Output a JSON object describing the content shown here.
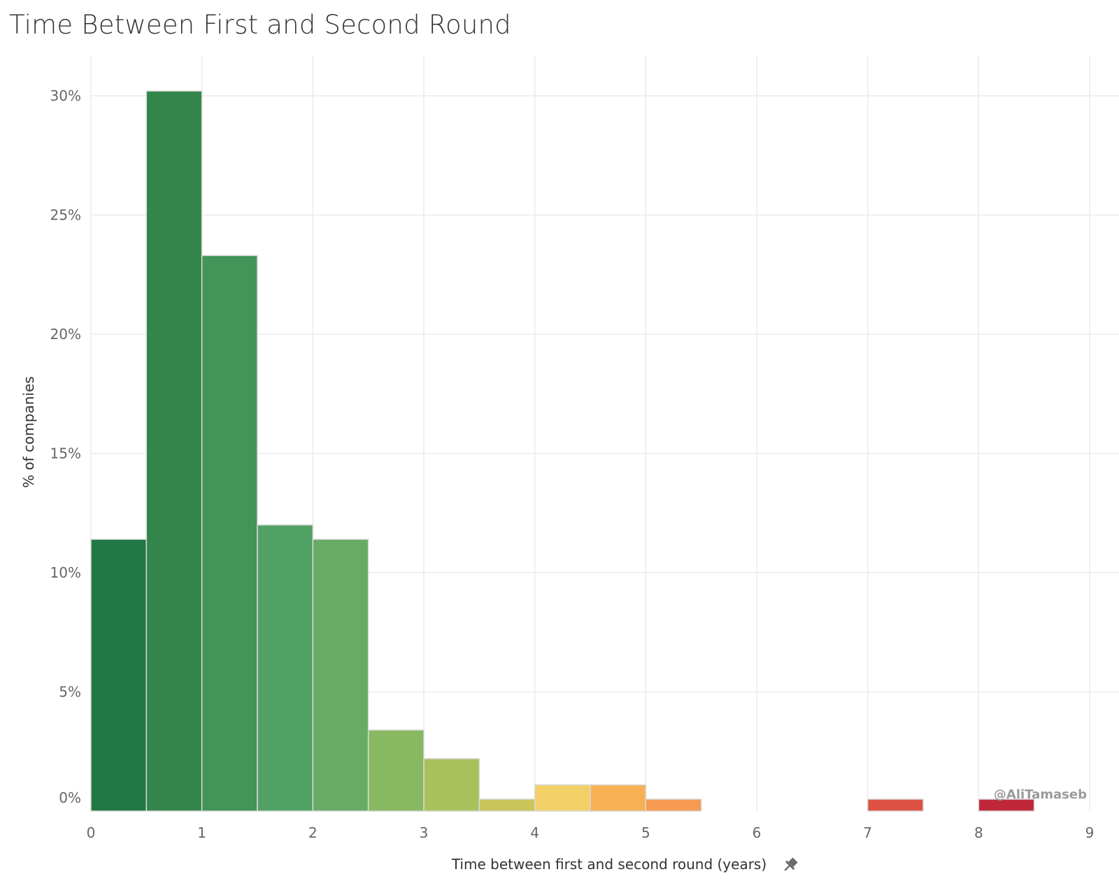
{
  "title": "Time Between First and Second Round",
  "watermark": "@AliTamaseb",
  "icons": {
    "pin": "pin-icon"
  },
  "chart_data": {
    "type": "bar",
    "title": "Time Between First and Second Round",
    "xlabel": "Time between first and second round (years)",
    "ylabel": "% of companies",
    "xlim": [
      0,
      9
    ],
    "ylim": [
      0,
      30
    ],
    "x_ticks": [
      "0",
      "1",
      "2",
      "3",
      "4",
      "5",
      "6",
      "7",
      "8",
      "9"
    ],
    "y_ticks": [
      "0%",
      "5%",
      "10%",
      "15%",
      "20%",
      "25%",
      "30%"
    ],
    "grid": true,
    "bin_width": 0.5,
    "bins": [
      {
        "start": 0.0,
        "end": 0.5,
        "value": 11.4,
        "color": "#227844"
      },
      {
        "start": 0.5,
        "end": 1.0,
        "value": 30.2,
        "color": "#33854b"
      },
      {
        "start": 1.0,
        "end": 1.5,
        "value": 23.3,
        "color": "#429458"
      },
      {
        "start": 1.5,
        "end": 2.0,
        "value": 12.0,
        "color": "#52a164"
      },
      {
        "start": 2.0,
        "end": 2.5,
        "value": 11.4,
        "color": "#68ab65"
      },
      {
        "start": 2.5,
        "end": 3.0,
        "value": 3.4,
        "color": "#88b862"
      },
      {
        "start": 3.0,
        "end": 3.5,
        "value": 2.2,
        "color": "#a9c15d"
      },
      {
        "start": 3.5,
        "end": 4.0,
        "value": 0.5,
        "color": "#cac45a"
      },
      {
        "start": 4.0,
        "end": 4.5,
        "value": 1.1,
        "color": "#f2d067"
      },
      {
        "start": 4.5,
        "end": 5.0,
        "value": 1.1,
        "color": "#f8b055"
      },
      {
        "start": 5.0,
        "end": 5.5,
        "value": 0.5,
        "color": "#f69a52"
      },
      {
        "start": 7.0,
        "end": 7.5,
        "value": 0.5,
        "color": "#dd5244"
      },
      {
        "start": 8.0,
        "end": 8.5,
        "value": 0.5,
        "color": "#c0283a"
      }
    ]
  }
}
